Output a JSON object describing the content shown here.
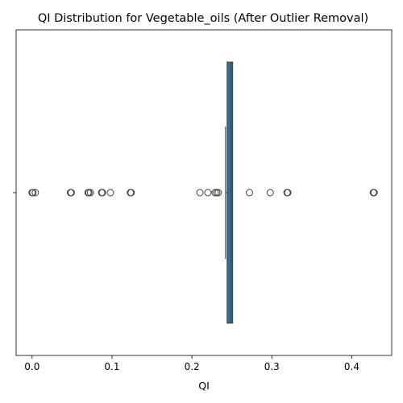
{
  "chart_data": {
    "type": "boxplot",
    "orientation": "horizontal",
    "title": "QI Distribution for Vegetable_oils (After Outlier Removal)",
    "xlabel": "QI",
    "ylabel": "",
    "xlim": [
      -0.02,
      0.45
    ],
    "x_ticks": [
      0.0,
      0.1,
      0.2,
      0.3,
      0.4
    ],
    "x_tick_labels": [
      "0.0",
      "0.1",
      "0.2",
      "0.3",
      "0.4"
    ],
    "grid": false,
    "box": {
      "whisker_low": 0.242,
      "q1": 0.244,
      "median": 0.249,
      "q3": 0.251,
      "whisker_high": 0.251,
      "fill_color": "#2f6f99"
    },
    "outliers": [
      0.0,
      0.001,
      0.004,
      0.048,
      0.049,
      0.07,
      0.071,
      0.073,
      0.087,
      0.088,
      0.098,
      0.123,
      0.124,
      0.21,
      0.22,
      0.229,
      0.231,
      0.233,
      0.272,
      0.298,
      0.319,
      0.32,
      0.427,
      0.428
    ]
  }
}
